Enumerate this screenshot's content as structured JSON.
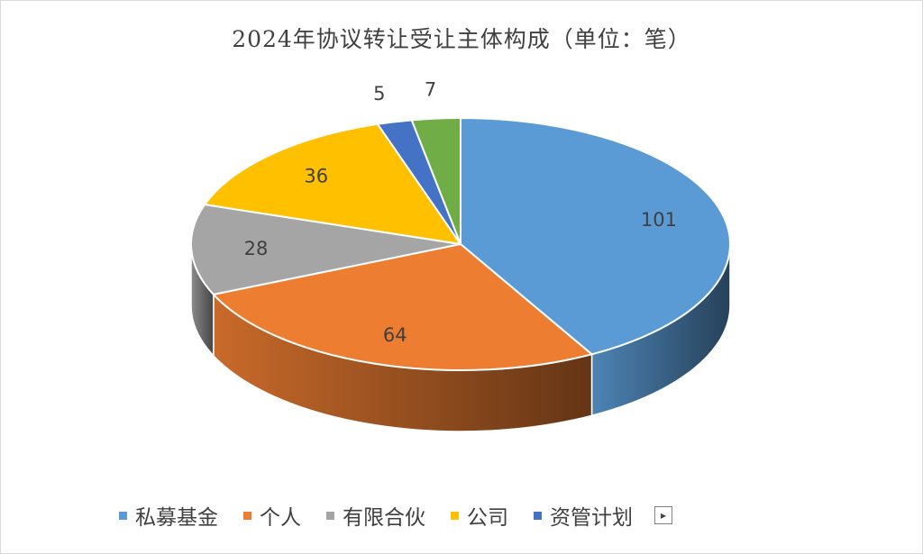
{
  "chart_data": {
    "type": "pie",
    "title": "2024年协议转让受让主体构成（单位：笔）",
    "slices": [
      {
        "label": "私募基金",
        "value": 101,
        "color": "#5B9BD5"
      },
      {
        "label": "个人",
        "value": 64,
        "color": "#ED7D31"
      },
      {
        "label": "有限合伙",
        "value": 28,
        "color": "#A5A5A5"
      },
      {
        "label": "公司",
        "value": 36,
        "color": "#FFC000"
      },
      {
        "label": "资管计划",
        "value": 5,
        "color": "#4472C4"
      },
      {
        "label": "",
        "value": 7,
        "color": "#70AD47"
      }
    ],
    "legend_visible": [
      "私募基金",
      "个人",
      "有限合伙",
      "公司",
      "资管计划"
    ],
    "legend_position": "bottom"
  },
  "legend_more_icon": "legend-scroll-icon"
}
